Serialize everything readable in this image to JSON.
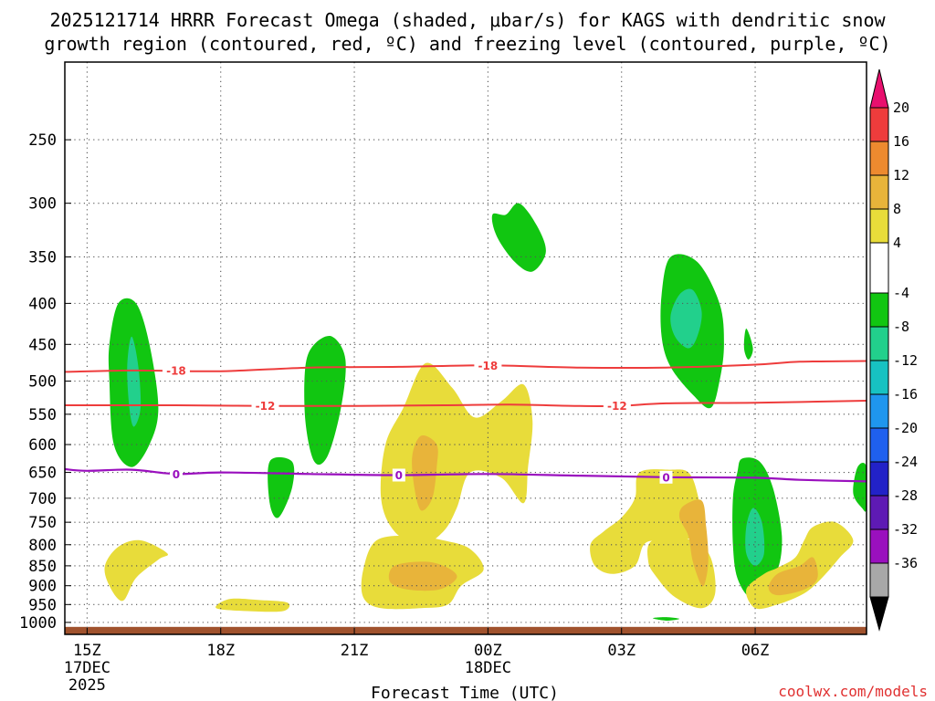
{
  "title": {
    "line1": "2025121714 HRRR Forecast Omega (shaded, μbar/s) for KAGS with dendritic snow",
    "line2": "growth region (contoured, red, ºC) and freezing level (contoured, purple, ºC)"
  },
  "credit": "coolwx.com/models",
  "chart_data": {
    "type": "contour",
    "title": "2025121714 HRRR Forecast Omega (shaded, μbar/s) for KAGS with dendritic snow growth region (contoured, red, ºC) and freezing level (contoured, purple, ºC)",
    "xlabel": "Forecast Time (UTC)",
    "ylabel": "",
    "x_range_hours": [
      14.5,
      32.5
    ],
    "x_ticks": [
      {
        "hour": 15,
        "label": "15Z",
        "sub1": "17DEC",
        "sub2": "2025"
      },
      {
        "hour": 18,
        "label": "18Z",
        "sub1": "",
        "sub2": ""
      },
      {
        "hour": 21,
        "label": "21Z",
        "sub1": "",
        "sub2": ""
      },
      {
        "hour": 24,
        "label": "00Z",
        "sub1": "18DEC",
        "sub2": ""
      },
      {
        "hour": 27,
        "label": "03Z",
        "sub1": "",
        "sub2": ""
      },
      {
        "hour": 30,
        "label": "06Z",
        "sub1": "",
        "sub2": ""
      }
    ],
    "y_scale": "log",
    "y_range_hpa": [
      1035,
      200
    ],
    "y_ticks": [
      250,
      300,
      350,
      400,
      450,
      500,
      550,
      600,
      650,
      700,
      750,
      800,
      850,
      900,
      950,
      1000
    ],
    "grid": true,
    "colorbar": {
      "labels": [
        "20",
        "16",
        "12",
        "8",
        "4",
        "-4",
        "-8",
        "-12",
        "-16",
        "-20",
        "-24",
        "-28",
        "-32",
        "-36"
      ],
      "colors": [
        "#e8106e",
        "#ee3c3c",
        "#ed8a2f",
        "#e8b43a",
        "#e8dc3a",
        "#ffffff",
        "#11c611",
        "#22d08c",
        "#17c2c2",
        "#1f96ee",
        "#1f60ee",
        "#2222c8",
        "#5e1ab4",
        "#9a10be",
        "#a8a8a8",
        "#000000"
      ]
    },
    "dendritic_contours": [
      {
        "temp": -18,
        "label": "-18",
        "points": [
          [
            14.5,
            487
          ],
          [
            16.0,
            485
          ],
          [
            18.0,
            486
          ],
          [
            20.0,
            481
          ],
          [
            22.0,
            480
          ],
          [
            24.0,
            478
          ],
          [
            26.0,
            481
          ],
          [
            28.0,
            481
          ],
          [
            30.0,
            477
          ],
          [
            31.0,
            473
          ],
          [
            32.5,
            472
          ]
        ]
      },
      {
        "temp": -12,
        "label": "-12",
        "points": [
          [
            14.5,
            536
          ],
          [
            17.0,
            536
          ],
          [
            19.0,
            537
          ],
          [
            21.0,
            537
          ],
          [
            23.0,
            536
          ],
          [
            24.5,
            535
          ],
          [
            26.0,
            537
          ],
          [
            27.0,
            537
          ],
          [
            28.0,
            533
          ],
          [
            30.0,
            532
          ],
          [
            32.5,
            529
          ]
        ]
      }
    ],
    "freezing_level": {
      "temp": 0,
      "label": "0",
      "points": [
        [
          14.5,
          644
        ],
        [
          15.0,
          647
        ],
        [
          16.0,
          645
        ],
        [
          17.0,
          653
        ],
        [
          18.0,
          650
        ],
        [
          20.0,
          653
        ],
        [
          22.0,
          655
        ],
        [
          24.0,
          653
        ],
        [
          26.0,
          656
        ],
        [
          28.0,
          659
        ],
        [
          30.0,
          660
        ],
        [
          31.0,
          664
        ],
        [
          32.5,
          667
        ]
      ]
    },
    "contour_labels": [
      {
        "text": "-18",
        "hour": 17.0,
        "hpa": 485,
        "color": "#ee3c3c"
      },
      {
        "text": "-18",
        "hour": 24.0,
        "hpa": 478,
        "color": "#ee3c3c"
      },
      {
        "text": "-12",
        "hour": 19.0,
        "hpa": 537,
        "color": "#ee3c3c"
      },
      {
        "text": "-12",
        "hour": 26.9,
        "hpa": 537,
        "color": "#ee3c3c"
      },
      {
        "text": "0",
        "hour": 17.0,
        "hpa": 653,
        "color": "#9a10be"
      },
      {
        "text": "0",
        "hour": 22.0,
        "hpa": 655,
        "color": "#9a10be"
      },
      {
        "text": "0",
        "hour": 28.0,
        "hpa": 659,
        "color": "#9a10be"
      }
    ],
    "omega_regions": [
      {
        "level": "-8",
        "color": "#11c611",
        "points": [
          [
            15.7,
            400
          ],
          [
            16.1,
            400
          ],
          [
            16.4,
            450
          ],
          [
            16.6,
            540
          ],
          [
            16.4,
            600
          ],
          [
            16.0,
            640
          ],
          [
            15.6,
            600
          ],
          [
            15.5,
            500
          ],
          [
            15.5,
            450
          ]
        ]
      },
      {
        "level": "-12",
        "color": "#22d08c",
        "points": [
          [
            16.0,
            440
          ],
          [
            16.15,
            480
          ],
          [
            16.2,
            540
          ],
          [
            16.05,
            570
          ],
          [
            15.95,
            540
          ],
          [
            15.9,
            480
          ]
        ]
      },
      {
        "level": "-8",
        "color": "#11c611",
        "points": [
          [
            24.4,
            310
          ],
          [
            24.7,
            300
          ],
          [
            25.1,
            320
          ],
          [
            25.3,
            345
          ],
          [
            25.0,
            365
          ],
          [
            24.6,
            355
          ],
          [
            24.2,
            330
          ],
          [
            24.1,
            310
          ]
        ]
      },
      {
        "level": "-8",
        "color": "#11c611",
        "points": [
          [
            20.1,
            450
          ],
          [
            20.5,
            440
          ],
          [
            20.8,
            470
          ],
          [
            20.7,
            540
          ],
          [
            20.4,
            620
          ],
          [
            20.1,
            630
          ],
          [
            19.9,
            560
          ],
          [
            19.9,
            480
          ]
        ]
      },
      {
        "level": "-8",
        "color": "#11c611",
        "points": [
          [
            19.1,
            630
          ],
          [
            19.6,
            630
          ],
          [
            19.6,
            680
          ],
          [
            19.3,
            740
          ],
          [
            19.1,
            710
          ]
        ]
      },
      {
        "level": "-8",
        "color": "#11c611",
        "points": [
          [
            28.1,
            350
          ],
          [
            28.7,
            355
          ],
          [
            29.2,
            400
          ],
          [
            29.3,
            450
          ],
          [
            29.2,
            500
          ],
          [
            29.0,
            540
          ],
          [
            28.6,
            520
          ],
          [
            28.1,
            480
          ],
          [
            27.9,
            440
          ],
          [
            27.9,
            390
          ]
        ]
      },
      {
        "level": "-12",
        "color": "#22d08c",
        "points": [
          [
            28.3,
            390
          ],
          [
            28.6,
            385
          ],
          [
            28.8,
            410
          ],
          [
            28.7,
            440
          ],
          [
            28.5,
            455
          ],
          [
            28.2,
            440
          ],
          [
            28.1,
            415
          ]
        ]
      },
      {
        "level": "-8",
        "color": "#11c611",
        "points": [
          [
            29.8,
            430
          ],
          [
            29.95,
            455
          ],
          [
            29.85,
            470
          ],
          [
            29.75,
            455
          ]
        ]
      },
      {
        "level": "-8",
        "color": "#11c611",
        "points": [
          [
            29.7,
            625
          ],
          [
            30.1,
            630
          ],
          [
            30.4,
            680
          ],
          [
            30.6,
            780
          ],
          [
            30.5,
            860
          ],
          [
            30.2,
            880
          ],
          [
            29.9,
            930
          ],
          [
            29.6,
            880
          ],
          [
            29.5,
            800
          ],
          [
            29.5,
            700
          ],
          [
            29.6,
            650
          ]
        ]
      },
      {
        "level": "-12",
        "color": "#22d08c",
        "points": [
          [
            29.95,
            720
          ],
          [
            30.15,
            750
          ],
          [
            30.2,
            820
          ],
          [
            30.0,
            850
          ],
          [
            29.8,
            820
          ],
          [
            29.8,
            760
          ]
        ]
      },
      {
        "level": "-8",
        "color": "#11c611",
        "points": [
          [
            32.3,
            640
          ],
          [
            32.5,
            640
          ],
          [
            32.5,
            720
          ],
          [
            32.4,
            720
          ],
          [
            32.2,
            690
          ]
        ]
      },
      {
        "level": "-8",
        "color": "#11c611",
        "points": [
          [
            27.7,
            988
          ],
          [
            28.0,
            985
          ],
          [
            28.3,
            990
          ],
          [
            28.0,
            995
          ]
        ]
      },
      {
        "level": "4",
        "color": "#e8dc3a",
        "points": [
          [
            22.6,
            475
          ],
          [
            23.2,
            510
          ],
          [
            23.7,
            555
          ],
          [
            24.3,
            530
          ],
          [
            24.8,
            505
          ],
          [
            25.0,
            560
          ],
          [
            24.9,
            640
          ],
          [
            24.8,
            710
          ],
          [
            24.3,
            660
          ],
          [
            23.6,
            650
          ],
          [
            23.3,
            720
          ],
          [
            23.0,
            770
          ],
          [
            22.5,
            800
          ],
          [
            21.9,
            770
          ],
          [
            21.6,
            700
          ],
          [
            21.7,
            600
          ],
          [
            22.1,
            540
          ]
        ]
      },
      {
        "level": "8",
        "color": "#e8b43a",
        "points": [
          [
            22.5,
            585
          ],
          [
            22.85,
            600
          ],
          [
            22.85,
            640
          ],
          [
            22.75,
            700
          ],
          [
            22.5,
            725
          ],
          [
            22.35,
            680
          ],
          [
            22.3,
            620
          ]
        ]
      },
      {
        "level": "4",
        "color": "#e8dc3a",
        "points": [
          [
            21.5,
            790
          ],
          [
            22.3,
            780
          ],
          [
            23.0,
            790
          ],
          [
            23.6,
            810
          ],
          [
            23.9,
            860
          ],
          [
            23.4,
            900
          ],
          [
            23.1,
            950
          ],
          [
            22.5,
            960
          ],
          [
            21.6,
            960
          ],
          [
            21.2,
            930
          ],
          [
            21.2,
            860
          ]
        ]
      },
      {
        "level": "8",
        "color": "#e8b43a",
        "points": [
          [
            21.9,
            850
          ],
          [
            22.6,
            840
          ],
          [
            23.1,
            855
          ],
          [
            23.3,
            880
          ],
          [
            22.9,
            910
          ],
          [
            22.2,
            910
          ],
          [
            21.8,
            890
          ]
        ]
      },
      {
        "level": "4",
        "color": "#e8dc3a",
        "points": [
          [
            27.4,
            650
          ],
          [
            28.1,
            645
          ],
          [
            28.5,
            650
          ],
          [
            28.7,
            690
          ],
          [
            28.8,
            760
          ],
          [
            28.4,
            790
          ],
          [
            27.8,
            790
          ],
          [
            27.5,
            800
          ],
          [
            27.3,
            850
          ],
          [
            26.8,
            870
          ],
          [
            26.4,
            850
          ],
          [
            26.3,
            800
          ],
          [
            26.6,
            770
          ],
          [
            27.0,
            740
          ],
          [
            27.3,
            700
          ]
        ]
      },
      {
        "level": "4",
        "color": "#e8dc3a",
        "points": [
          [
            27.7,
            790
          ],
          [
            28.6,
            790
          ],
          [
            29.0,
            830
          ],
          [
            29.1,
            920
          ],
          [
            28.8,
            960
          ],
          [
            28.2,
            930
          ],
          [
            27.8,
            880
          ],
          [
            27.6,
            840
          ]
        ]
      },
      {
        "level": "8",
        "color": "#e8b43a",
        "points": [
          [
            28.4,
            715
          ],
          [
            28.8,
            705
          ],
          [
            28.9,
            760
          ],
          [
            28.95,
            830
          ],
          [
            28.9,
            880
          ],
          [
            28.8,
            900
          ],
          [
            28.6,
            840
          ],
          [
            28.5,
            780
          ],
          [
            28.3,
            740
          ]
        ]
      },
      {
        "level": "4",
        "color": "#e8dc3a",
        "points": [
          [
            15.7,
            805
          ],
          [
            16.2,
            790
          ],
          [
            16.8,
            820
          ],
          [
            16.6,
            835
          ],
          [
            16.1,
            880
          ],
          [
            15.8,
            940
          ],
          [
            15.5,
            900
          ],
          [
            15.4,
            850
          ]
        ]
      },
      {
        "level": "4",
        "color": "#e8dc3a",
        "points": [
          [
            18.2,
            935
          ],
          [
            18.9,
            938
          ],
          [
            19.5,
            945
          ],
          [
            19.4,
            968
          ],
          [
            18.6,
            968
          ],
          [
            17.9,
            960
          ]
        ]
      },
      {
        "level": "4",
        "color": "#e8dc3a",
        "points": [
          [
            30.5,
            855
          ],
          [
            30.9,
            830
          ],
          [
            31.1,
            790
          ],
          [
            31.3,
            760
          ],
          [
            31.8,
            750
          ],
          [
            32.2,
            790
          ],
          [
            31.9,
            830
          ],
          [
            31.5,
            880
          ],
          [
            31.1,
            920
          ],
          [
            30.5,
            950
          ],
          [
            30.0,
            960
          ],
          [
            29.8,
            910
          ],
          [
            30.2,
            870
          ]
        ]
      },
      {
        "level": "8",
        "color": "#e8b43a",
        "points": [
          [
            30.5,
            870
          ],
          [
            31.0,
            850
          ],
          [
            31.3,
            830
          ],
          [
            31.4,
            880
          ],
          [
            31.1,
            910
          ],
          [
            30.5,
            925
          ],
          [
            30.3,
            905
          ]
        ]
      }
    ],
    "surface_band_hpa": 1013
  }
}
